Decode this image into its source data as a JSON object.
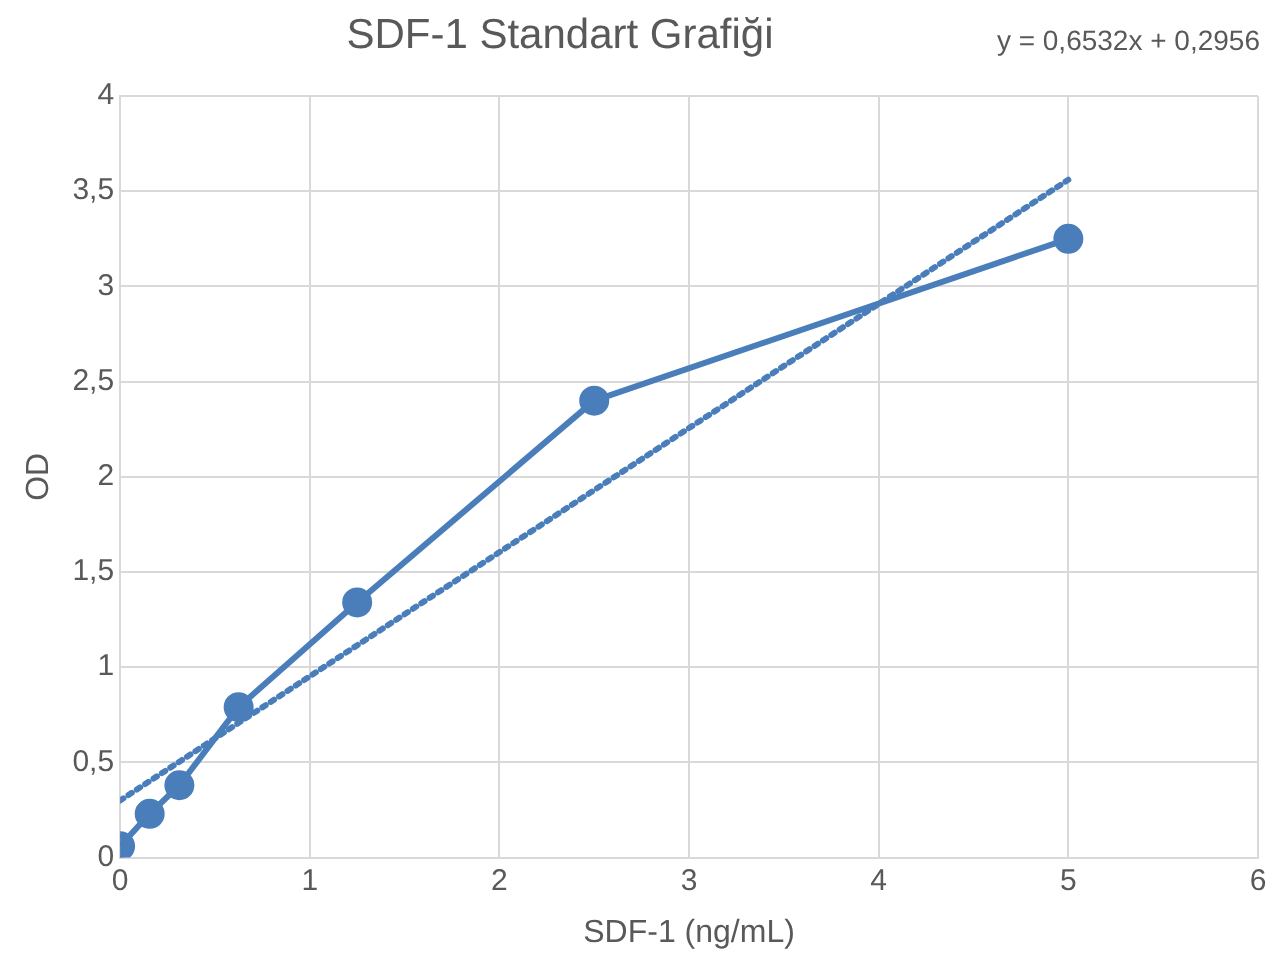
{
  "chart_data": {
    "type": "line",
    "title": "SDF-1 Standart Grafiği",
    "xlabel": "SDF-1 (ng/mL)",
    "ylabel": "OD",
    "annotations": [
      "y = 0,6532x + 0,2956"
    ],
    "x": [
      0,
      0.156,
      0.3125,
      0.625,
      1.25,
      2.5,
      5
    ],
    "series": [
      {
        "color": "#4a7ebb",
        "values": [
          0.06,
          0.23,
          0.38,
          0.79,
          1.34,
          2.4,
          3.25
        ],
        "marker": "circle",
        "line_style": "solid"
      },
      {
        "color": "#4a7ebb",
        "x": [
          0,
          5
        ],
        "values": [
          0.3,
          3.56
        ],
        "marker": "none",
        "line_style": "dotted"
      }
    ],
    "xlim": [
      0,
      6
    ],
    "xticks": [
      0,
      1,
      2,
      3,
      4,
      5,
      6
    ],
    "ylim": [
      0,
      4
    ],
    "yticks": [
      0,
      {
        "value": 0.5,
        "label": "0,5"
      },
      1,
      {
        "value": 1.5,
        "label": "1,5"
      },
      2,
      {
        "value": 2.5,
        "label": "2,5"
      },
      3,
      {
        "value": 3.5,
        "label": "3,5"
      },
      4
    ],
    "grid": true,
    "legend": false
  }
}
